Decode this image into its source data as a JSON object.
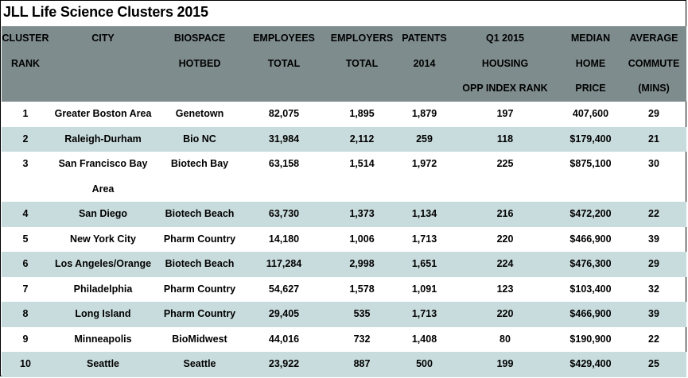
{
  "title": "JLL Life Science Clusters 2015",
  "headers": [
    [
      "CLUSTER",
      "RANK"
    ],
    [
      "CITY"
    ],
    [
      "BIOSPACE",
      "HOTBED"
    ],
    [
      "EMPLOYEES",
      "TOTAL"
    ],
    [
      "EMPLOYERS",
      "TOTAL"
    ],
    [
      "PATENTS",
      "2014"
    ],
    [
      "Q1 2015",
      "HOUSING",
      "OPP INDEX RANK"
    ],
    [
      "MEDIAN",
      "HOME",
      "PRICE"
    ],
    [
      "AVERAGE",
      "COMMUTE",
      "(MINS)"
    ]
  ],
  "rows": [
    [
      "1",
      "Greater Boston Area",
      "Genetown",
      "82,075",
      "1,895",
      "1,879",
      "197",
      "407,600",
      "29"
    ],
    [
      "2",
      "Raleigh-Durham",
      "Bio NC",
      "31,984",
      "2,112",
      "259",
      "118",
      "$179,400",
      "21"
    ],
    [
      "3",
      "San Francisco Bay Area",
      "Biotech Bay",
      "63,158",
      "1,514",
      "1,972",
      "225",
      "$875,100",
      "30"
    ],
    [
      "4",
      "San Diego",
      "Biotech Beach",
      "63,730",
      "1,373",
      "1,134",
      "216",
      "$472,200",
      "22"
    ],
    [
      "5",
      "New York City",
      "Pharm Country",
      "14,180",
      "1,006",
      "1,713",
      "220",
      "$466,900",
      "39"
    ],
    [
      "6",
      "Los Angeles/Orange",
      "Biotech Beach",
      "117,284",
      "2,998",
      "1,651",
      "224",
      "$476,300",
      "29"
    ],
    [
      "7",
      "Philadelphia",
      "Pharm Country",
      "54,627",
      "1,578",
      "1,091",
      "123",
      "$103,400",
      "32"
    ],
    [
      "8",
      "Long Island",
      "Pharm Country",
      "29,405",
      "535",
      "1,713",
      "220",
      "$466,900",
      "39"
    ],
    [
      "9",
      "Minneapolis",
      "BioMidwest",
      "44,016",
      "732",
      "1,408",
      "80",
      "$190,900",
      "22"
    ],
    [
      "10",
      "Seattle",
      "Seattle",
      "23,922",
      "887",
      "500",
      "199",
      "$429,400",
      "25"
    ]
  ],
  "colors": {
    "header_bg": "#7f8c8e",
    "alt_row_bg": "#c9dcdd"
  }
}
